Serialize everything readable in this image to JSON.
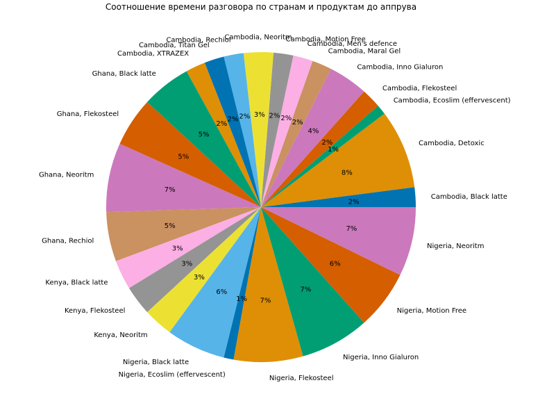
{
  "chart_data": {
    "type": "pie",
    "title": "Соотношение времени разговора по странам и продуктам до аппрува",
    "start_angle_deg": 0,
    "direction": "counterclockwise",
    "slices": [
      {
        "label": "Cambodia, Black latte",
        "value": 2,
        "pct_label": "2%",
        "color": "#0173b2"
      },
      {
        "label": "Cambodia, Detoxic",
        "value": 8,
        "pct_label": "8%",
        "color": "#de8f05"
      },
      {
        "label": "Cambodia, Ecoslim (effervescent)",
        "value": 1,
        "pct_label": "1%",
        "color": "#029e73"
      },
      {
        "label": "Cambodia, Flekosteel",
        "value": 2,
        "pct_label": "2%",
        "color": "#d55e00"
      },
      {
        "label": "Cambodia, Inno Gialuron",
        "value": 4,
        "pct_label": "4%",
        "color": "#cc78bc"
      },
      {
        "label": "Cambodia, Maral Gel",
        "value": 2,
        "pct_label": "2%",
        "color": "#ca9161"
      },
      {
        "label": "Cambodia, Men's defence",
        "value": 2,
        "pct_label": "2%",
        "color": "#fbafe4"
      },
      {
        "label": "Cambodia, Motion Free",
        "value": 2,
        "pct_label": "2%",
        "color": "#949494"
      },
      {
        "label": "Cambodia, Neoritm",
        "value": 3,
        "pct_label": "3%",
        "color": "#ece133"
      },
      {
        "label": "Cambodia, Rechiol",
        "value": 2,
        "pct_label": "2%",
        "color": "#56b4e9"
      },
      {
        "label": "Cambodia, Titan Gel",
        "value": 2,
        "pct_label": "2%",
        "color": "#0173b2"
      },
      {
        "label": "Cambodia, XTRAZEX",
        "value": 2,
        "pct_label": "2%",
        "color": "#de8f05"
      },
      {
        "label": "Ghana, Black latte",
        "value": 5,
        "pct_label": "5%",
        "color": "#029e73"
      },
      {
        "label": "Ghana, Flekosteel",
        "value": 5,
        "pct_label": "5%",
        "color": "#d55e00"
      },
      {
        "label": "Ghana, Neoritm",
        "value": 7,
        "pct_label": "7%",
        "color": "#cc78bc"
      },
      {
        "label": "Ghana, Rechiol",
        "value": 5,
        "pct_label": "5%",
        "color": "#ca9161"
      },
      {
        "label": "Kenya, Black latte",
        "value": 3,
        "pct_label": "3%",
        "color": "#fbafe4"
      },
      {
        "label": "Kenya, Flekosteel",
        "value": 3,
        "pct_label": "3%",
        "color": "#949494"
      },
      {
        "label": "Kenya, Neoritm",
        "value": 3,
        "pct_label": "3%",
        "color": "#ece133"
      },
      {
        "label": "Nigeria, Black latte",
        "value": 6,
        "pct_label": "6%",
        "color": "#56b4e9"
      },
      {
        "label": "Nigeria, Ecoslim (effervescent)",
        "value": 1,
        "pct_label": "1%",
        "color": "#0173b2"
      },
      {
        "label": "Nigeria, Flekosteel",
        "value": 7,
        "pct_label": "7%",
        "color": "#de8f05"
      },
      {
        "label": "Nigeria, Inno Gialuron",
        "value": 7,
        "pct_label": "7%",
        "color": "#029e73"
      },
      {
        "label": "Nigeria, Motion Free",
        "value": 6,
        "pct_label": "6%",
        "color": "#d55e00"
      },
      {
        "label": "Nigeria, Neoritm",
        "value": 7,
        "pct_label": "7%",
        "color": "#cc78bc"
      }
    ]
  }
}
